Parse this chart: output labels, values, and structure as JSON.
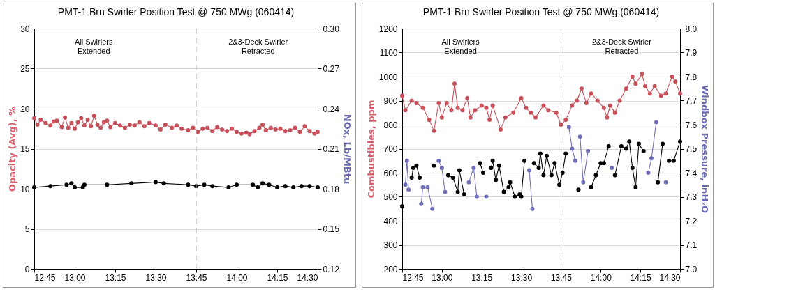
{
  "chart_data": [
    {
      "type": "line",
      "title": "PMT-1 Brn Swirler Position Test @ 750 MWg (060414)",
      "ylabel": "Opacity (Avg), %",
      "y2label": "NOx, Lb/MBtu",
      "annotations": [
        "All Swirlers\nExtended",
        "2&3-Deck Swirler\nRetracted"
      ],
      "xlim": [
        12.75,
        14.5
      ],
      "xticks": [
        {
          "value": 12.75,
          "label": "12:45"
        },
        {
          "value": 13,
          "label": "13:00"
        },
        {
          "value": 13.25,
          "label": "13:15"
        },
        {
          "value": 13.5,
          "label": "13:30"
        },
        {
          "value": 13.75,
          "label": "13:45"
        },
        {
          "value": 14,
          "label": "14:00"
        },
        {
          "value": 14.25,
          "label": "14:15"
        },
        {
          "value": 14.5,
          "label": "14:30"
        }
      ],
      "ylim": [
        0,
        30
      ],
      "yticks": [
        0,
        5,
        10,
        15,
        20,
        25,
        30
      ],
      "y2lim": [
        0.12,
        0.3
      ],
      "y2ticks": [
        0.12,
        0.15,
        0.18,
        0.21,
        0.24,
        0.27,
        {
          "value": 0.3,
          "label": "0.30"
        }
      ],
      "grid": "y",
      "marker": "circle",
      "ref_lines": [
        {
          "axis": "x",
          "value": 13.75,
          "line_style": "dashed"
        }
      ],
      "series": [
        {
          "color": "#c8505a",
          "x": [
            12.75,
            12.77,
            12.79,
            12.82,
            12.85,
            12.87,
            12.89,
            12.92,
            12.94,
            12.96,
            12.98,
            13.0,
            13.02,
            13.04,
            13.06,
            13.08,
            13.1,
            13.12,
            13.14,
            13.16,
            13.18,
            13.2,
            13.22,
            13.25,
            13.28,
            13.31,
            13.34,
            13.37,
            13.4,
            13.43,
            13.46,
            13.5,
            13.53,
            13.56,
            13.6,
            13.63,
            13.66,
            13.7,
            13.73,
            13.76,
            13.79,
            13.82,
            13.85,
            13.88,
            13.91,
            13.94,
            13.97,
            14.0,
            14.03,
            14.06,
            14.08,
            14.11,
            14.14,
            14.16,
            14.18,
            14.21,
            14.24,
            14.27,
            14.3,
            14.33,
            14.36,
            14.39,
            14.42,
            14.45,
            14.48,
            14.5
          ],
          "values": [
            18.8,
            18.0,
            18.6,
            18.2,
            17.9,
            18.4,
            18.5,
            17.7,
            18.9,
            17.6,
            18.2,
            17.5,
            18.3,
            18.8,
            17.9,
            18.6,
            17.8,
            19.1,
            18.0,
            17.6,
            18.3,
            18.5,
            17.7,
            18.2,
            17.9,
            17.6,
            18.0,
            17.9,
            18.3,
            17.8,
            18.2,
            17.9,
            17.4,
            18.0,
            17.6,
            17.9,
            17.5,
            17.3,
            17.6,
            17.1,
            17.5,
            17.6,
            17.2,
            17.7,
            17.4,
            17.2,
            17.5,
            17.1,
            16.9,
            17.0,
            16.8,
            17.2,
            17.6,
            18.0,
            17.3,
            17.6,
            17.4,
            17.5,
            17.2,
            17.3,
            17.6,
            17.1,
            17.8,
            17.2,
            16.9,
            17.1
          ]
        },
        {
          "color": "#000000",
          "axis": "y2",
          "x": [
            12.75,
            12.85,
            12.95,
            12.98,
            13.0,
            13.05,
            13.06,
            13.2,
            13.35,
            13.5,
            13.55,
            13.7,
            13.75,
            13.8,
            13.85,
            13.95,
            14.0,
            14.1,
            14.13,
            14.16,
            14.2,
            14.25,
            14.3,
            14.35,
            14.4,
            14.45,
            14.5
          ],
          "values": [
            0.181,
            0.182,
            0.183,
            0.184,
            0.181,
            0.181,
            0.183,
            0.183,
            0.184,
            0.185,
            0.184,
            0.183,
            0.182,
            0.183,
            0.182,
            0.181,
            0.183,
            0.183,
            0.181,
            0.184,
            0.183,
            0.181,
            0.182,
            0.181,
            0.182,
            0.182,
            0.181
          ]
        }
      ]
    },
    {
      "type": "line",
      "title": "PMT-1 Brn Swirler Position Test @ 750 MWg (060414)",
      "ylabel": "Combustibles, ppm",
      "y2label": "Windbox Pressure, inH₂O",
      "annotations": [
        "All Swirlers\nExtended",
        "2&3-Deck Swirler\nRetracted"
      ],
      "xlim": [
        12.75,
        14.5
      ],
      "xticks": [
        {
          "value": 12.75,
          "label": "12:45"
        },
        {
          "value": 13,
          "label": "13:00"
        },
        {
          "value": 13.25,
          "label": "13:15"
        },
        {
          "value": 13.5,
          "label": "13:30"
        },
        {
          "value": 13.75,
          "label": "13:45"
        },
        {
          "value": 14,
          "label": "14:00"
        },
        {
          "value": 14.25,
          "label": "14:15"
        },
        {
          "value": 14.5,
          "label": "14:30"
        }
      ],
      "ylim": [
        200,
        1200
      ],
      "yticks": [
        200,
        300,
        400,
        500,
        600,
        700,
        800,
        900,
        1000,
        1100,
        1200
      ],
      "y2lim": [
        7,
        8
      ],
      "y2ticks": [
        {
          "value": 7,
          "label": "7.0"
        },
        7.1,
        7.2,
        7.3,
        7.4,
        7.5,
        7.6,
        7.7,
        7.8,
        7.9,
        {
          "value": 8,
          "label": "8.0"
        }
      ],
      "grid": "y",
      "marker": "circle",
      "ref_lines": [
        {
          "axis": "x",
          "value": 13.75,
          "line_style": "dashed"
        }
      ],
      "x": [
        12.75,
        12.77,
        12.78,
        12.79,
        12.81,
        12.82,
        12.84,
        12.86,
        12.87,
        12.88,
        12.91,
        12.94,
        12.95,
        12.98,
        13.0,
        13.02,
        13.04,
        13.07,
        13.1,
        13.11,
        13.14,
        13.17,
        13.2,
        13.22,
        13.24,
        13.26,
        13.28,
        13.31,
        13.32,
        13.34,
        13.36,
        13.39,
        13.42,
        13.43,
        13.46,
        13.49,
        13.5,
        13.52,
        13.55,
        13.57,
        13.58,
        13.61,
        13.62,
        13.64,
        13.66,
        13.69,
        13.71,
        13.74,
        13.76,
        13.78,
        13.8,
        13.82,
        13.84,
        13.86,
        13.87,
        13.89,
        13.92,
        13.94,
        13.97,
        14.0,
        14.02,
        14.05,
        14.07,
        14.09,
        14.13,
        14.16,
        14.18,
        14.2,
        14.22,
        14.24,
        14.27,
        14.3,
        14.32,
        14.35,
        14.36,
        14.39,
        14.41,
        14.43,
        14.46,
        14.5
      ],
      "series": [
        {
          "color": "#c8505a",
          "x": [
            12.75,
            12.77,
            12.81,
            12.84,
            12.88,
            12.92,
            12.95,
            12.98,
            13.0,
            13.03,
            13.06,
            13.08,
            13.1,
            13.13,
            13.16,
            13.18,
            13.21,
            13.25,
            13.28,
            13.3,
            13.32,
            13.37,
            13.4,
            13.45,
            13.5,
            13.53,
            13.56,
            13.59,
            13.64,
            13.67,
            13.72,
            13.75,
            13.78,
            13.82,
            13.85,
            13.88,
            13.91,
            13.94,
            13.98,
            14.02,
            14.04,
            14.06,
            14.09,
            14.12,
            14.16,
            14.2,
            14.22,
            14.26,
            14.28,
            14.31,
            14.34,
            14.38,
            14.41,
            14.45,
            14.47,
            14.5
          ],
          "values": [
            920,
            860,
            900,
            890,
            870,
            820,
            775,
            890,
            830,
            890,
            860,
            970,
            870,
            860,
            910,
            830,
            860,
            880,
            870,
            820,
            880,
            780,
            830,
            850,
            910,
            870,
            850,
            830,
            880,
            860,
            850,
            800,
            820,
            880,
            900,
            950,
            890,
            930,
            900,
            870,
            830,
            880,
            850,
            900,
            950,
            1000,
            970,
            1010,
            960,
            930,
            960,
            920,
            930,
            1000,
            980,
            930
          ]
        },
        {
          "color": "#000000",
          "axis": "y2",
          "values": [
            7.26,
            null,
            null,
            null,
            7.38,
            7.42,
            7.43,
            7.38,
            null,
            null,
            null,
            null,
            7.43,
            null,
            null,
            null,
            7.39,
            7.38,
            7.32,
            7.41,
            7.31,
            null,
            null,
            null,
            7.44,
            7.4,
            null,
            7.42,
            7.45,
            7.37,
            7.43,
            7.32,
            7.34,
            7.36,
            7.3,
            7.31,
            7.3,
            7.45,
            null,
            null,
            7.44,
            7.42,
            7.48,
            7.39,
            7.47,
            7.39,
            7.44,
            7.35,
            7.4,
            7.48,
            null,
            null,
            null,
            7.33,
            null,
            null,
            null,
            7.34,
            7.39,
            7.44,
            7.44,
            7.51,
            null,
            7.39,
            7.51,
            7.5,
            7.53,
            7.42,
            7.34,
            7.52,
            7.49,
            null,
            null,
            null,
            7.36,
            7.52,
            null,
            7.45,
            7.45,
            7.53
          ]
        },
        {
          "color": "#7070b8",
          "axis": "y2",
          "values": [
            null,
            7.35,
            7.45,
            7.33,
            null,
            null,
            null,
            null,
            7.27,
            7.34,
            7.34,
            7.25,
            null,
            7.45,
            7.42,
            7.32,
            null,
            null,
            null,
            null,
            null,
            7.36,
            7.42,
            7.3,
            null,
            null,
            7.3,
            null,
            null,
            null,
            null,
            null,
            null,
            null,
            null,
            null,
            null,
            null,
            7.41,
            7.25,
            null,
            null,
            null,
            null,
            null,
            null,
            null,
            null,
            null,
            null,
            7.59,
            7.5,
            7.45,
            null,
            7.55,
            7.36,
            7.49,
            null,
            null,
            null,
            null,
            null,
            7.42,
            null,
            null,
            null,
            null,
            null,
            null,
            null,
            null,
            7.4,
            7.46,
            7.61,
            null,
            null,
            7.36,
            null,
            null,
            null
          ]
        }
      ]
    }
  ]
}
